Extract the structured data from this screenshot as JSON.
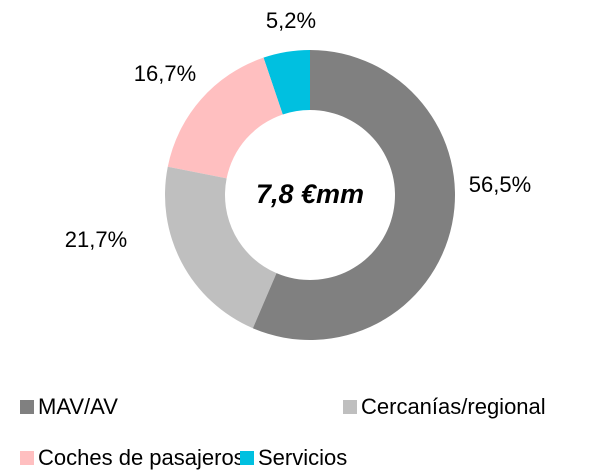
{
  "chart_data": {
    "type": "donut",
    "annotation": "7,8 €mm",
    "categories": [
      "MAV/AV",
      "Cercanías/regional",
      "Coches de pasajeros",
      "Servicios"
    ],
    "values": [
      56.5,
      21.7,
      16.7,
      5.2
    ],
    "value_labels": [
      "56,5%",
      "21,7%",
      "16,7%",
      "5,2%"
    ],
    "colors": [
      "#808080",
      "#bfbfbf",
      "#ffbfc0",
      "#00c0e0"
    ],
    "legend": "bottom"
  }
}
